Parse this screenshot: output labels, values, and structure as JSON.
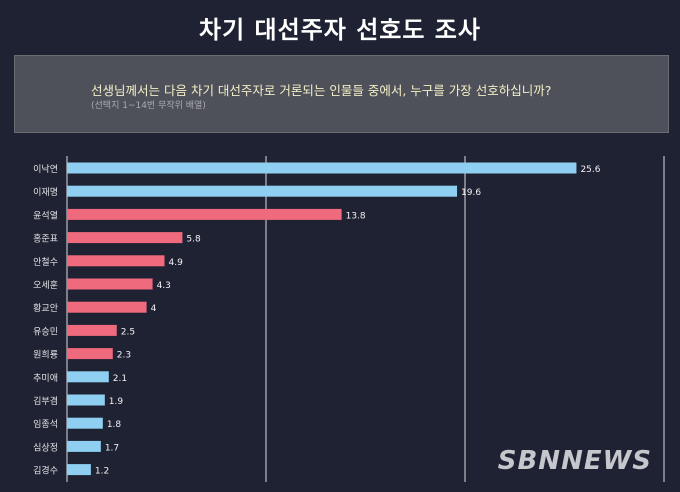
{
  "title": "차기 대선주자 선호도 조사",
  "question": "선생님께서는 다음 차기 대선주자로 거론되는 인물들 중에서, 누구를 가장 선호하십니까?",
  "note": "(선택지 1~14번 무작위 배열)",
  "watermark": "SBNNEWS",
  "colors": {
    "blue": "#8fd0f2",
    "red": "#f06a7e",
    "background": "#1f2232",
    "box": "#4f515a"
  },
  "chart_data": {
    "type": "bar",
    "orientation": "horizontal",
    "categories": [
      "이낙연",
      "이재명",
      "윤석열",
      "홍준표",
      "안철수",
      "오세훈",
      "황교안",
      "유승민",
      "원희룡",
      "추미애",
      "김부겸",
      "임종석",
      "심상정",
      "김경수"
    ],
    "values": [
      25.6,
      19.6,
      13.8,
      5.8,
      4.9,
      4.3,
      4,
      2.5,
      2.3,
      2.1,
      1.9,
      1.8,
      1.7,
      1.2
    ],
    "bar_colors": [
      "blue",
      "blue",
      "red",
      "red",
      "red",
      "red",
      "red",
      "red",
      "red",
      "blue",
      "blue",
      "blue",
      "blue",
      "blue"
    ],
    "xlim": [
      0,
      30
    ],
    "grid": true
  }
}
